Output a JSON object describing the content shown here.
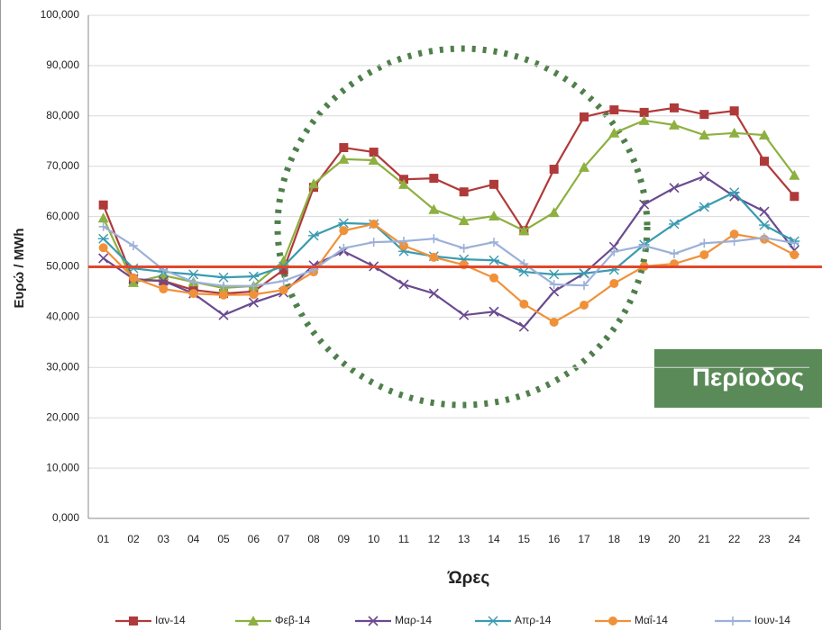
{
  "chart_data": {
    "type": "line",
    "y_label": "Ευρώ / MWh",
    "x_label": "Ώρες",
    "annotation": "Περίοδος",
    "reference_line": 50,
    "reference_color": "#e0472b",
    "categories": [
      "01",
      "02",
      "03",
      "04",
      "05",
      "06",
      "07",
      "08",
      "09",
      "10",
      "11",
      "12",
      "13",
      "14",
      "15",
      "16",
      "17",
      "18",
      "19",
      "20",
      "21",
      "22",
      "23",
      "24"
    ],
    "ylim": [
      0,
      100
    ],
    "yticks": [
      {
        "value": 0,
        "label": "0,000"
      },
      {
        "value": 10,
        "label": "10,000"
      },
      {
        "value": 20,
        "label": "20,000"
      },
      {
        "value": 30,
        "label": "30,000"
      },
      {
        "value": 40,
        "label": "40,000"
      },
      {
        "value": 50,
        "label": "50,000"
      },
      {
        "value": 60,
        "label": "60,000"
      },
      {
        "value": 70,
        "label": "70,000"
      },
      {
        "value": 80,
        "label": "80,000"
      },
      {
        "value": 90,
        "label": "90,000"
      },
      {
        "value": 100,
        "label": "100,000"
      }
    ],
    "grid": true,
    "legend": "bottom",
    "series": [
      {
        "name": "Ιαν-14",
        "color": "#b03a3a",
        "marker": "square",
        "values": [
          62.3,
          47.4,
          47.2,
          45.4,
          44.7,
          45.1,
          49.4,
          65.8,
          73.7,
          72.8,
          67.4,
          67.6,
          64.9,
          66.4,
          57.2,
          69.4,
          79.8,
          81.2,
          80.7,
          81.6,
          80.3,
          81.0,
          71.0,
          64.0
        ]
      },
      {
        "name": "Φεβ-14",
        "color": "#8db040",
        "marker": "triangle",
        "values": [
          59.7,
          46.9,
          48.3,
          47.0,
          45.8,
          46.2,
          51.2,
          66.5,
          71.4,
          71.2,
          66.4,
          61.4,
          59.2,
          60.1,
          57.2,
          60.8,
          69.8,
          76.6,
          79.1,
          78.2,
          76.2,
          76.6,
          76.2,
          68.2
        ]
      },
      {
        "name": "Μαρ-14",
        "color": "#6b4a8f",
        "marker": "x",
        "values": [
          51.7,
          47.6,
          47.2,
          44.7,
          40.4,
          42.9,
          44.9,
          50.3,
          53.1,
          50.1,
          46.5,
          44.7,
          40.4,
          41.1,
          38.1,
          45.1,
          48.7,
          54.0,
          62.4,
          65.7,
          68.0,
          64.0,
          61.0,
          53.3
        ]
      },
      {
        "name": "Απρ-14",
        "color": "#3a9bb0",
        "marker": "star",
        "values": [
          55.6,
          49.7,
          49.0,
          48.5,
          47.9,
          48.1,
          50.1,
          56.2,
          58.7,
          58.5,
          53.1,
          52.1,
          51.5,
          51.3,
          49.0,
          48.5,
          48.7,
          49.4,
          54.4,
          58.5,
          61.9,
          64.8,
          58.3,
          55.1
        ]
      },
      {
        "name": "Μαΐ-14",
        "color": "#f0913a",
        "marker": "circle",
        "values": [
          53.8,
          47.8,
          45.6,
          44.7,
          44.4,
          44.5,
          45.4,
          49.0,
          57.2,
          58.5,
          54.2,
          51.9,
          50.4,
          47.8,
          42.6,
          39.0,
          42.4,
          46.7,
          50.1,
          50.6,
          52.4,
          56.5,
          55.5,
          52.4
        ]
      },
      {
        "name": "Ιουν-14",
        "color": "#9cb0d8",
        "marker": "plus",
        "values": [
          58.0,
          54.2,
          49.4,
          47.0,
          46.2,
          46.2,
          47.2,
          49.4,
          53.7,
          54.9,
          55.1,
          55.6,
          53.7,
          54.9,
          50.6,
          46.5,
          46.3,
          53.0,
          54.2,
          52.6,
          54.7,
          55.1,
          55.8,
          54.7
        ]
      }
    ]
  }
}
